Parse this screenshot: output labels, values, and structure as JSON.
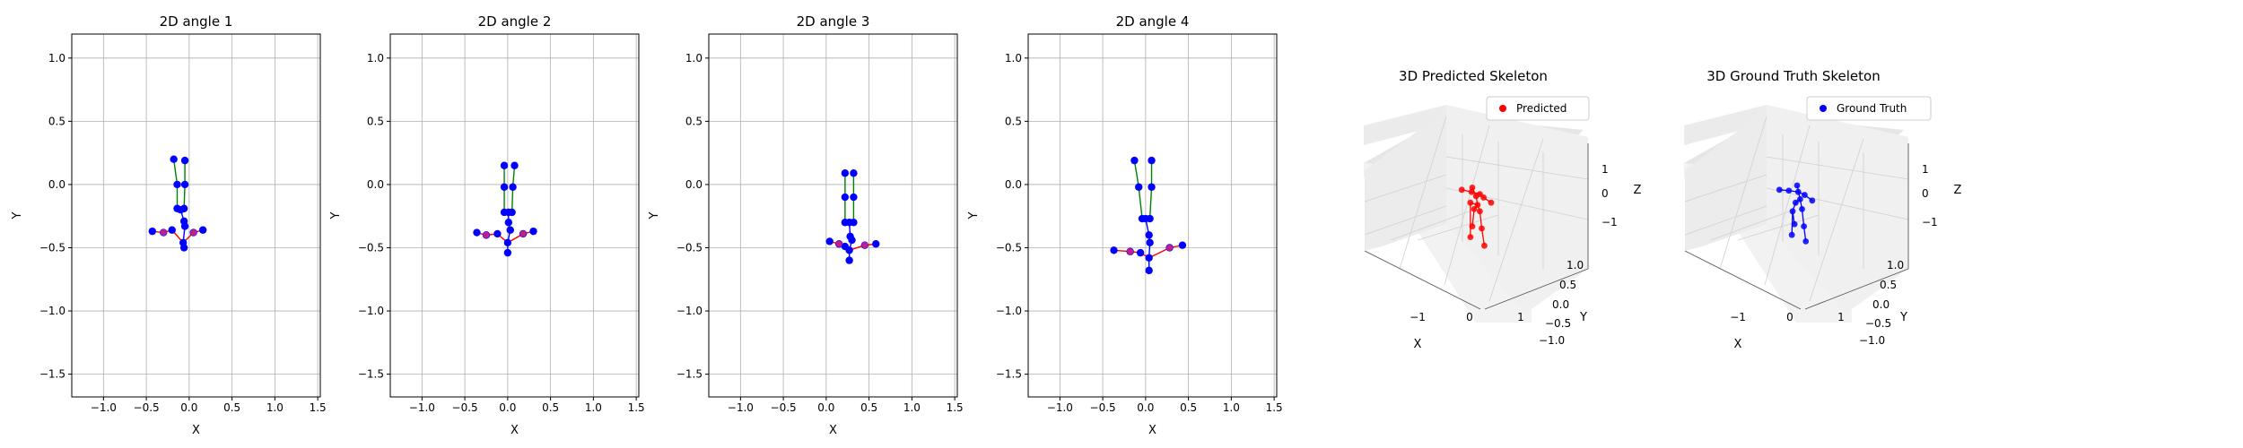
{
  "chart_data": [
    {
      "type": "scatter",
      "title": "2D angle 1",
      "xlabel": "X",
      "ylabel": "Y",
      "xlim": [
        -1.37,
        1.53
      ],
      "ylim": [
        -1.68,
        1.19
      ],
      "xticks": [
        -1.0,
        -0.5,
        0.0,
        0.5,
        1.0,
        1.5
      ],
      "yticks": [
        1.0,
        0.5,
        0.0,
        -0.5,
        -1.0,
        -1.5
      ],
      "xtick_labels": [
        "−1.0",
        "−0.5",
        "0.0",
        "0.5",
        "1.0",
        "1.5"
      ],
      "ytick_labels": [
        "1.0",
        "0.5",
        "0.0",
        "−0.5",
        "−1.0",
        "−1.5"
      ],
      "grid": true,
      "points": [
        [
          -0.07,
          -0.46
        ],
        [
          -0.3,
          -0.38
        ],
        [
          -0.43,
          -0.37
        ],
        [
          -0.2,
          -0.36
        ],
        [
          0.16,
          -0.36
        ],
        [
          0.05,
          -0.38
        ],
        [
          -0.05,
          -0.33
        ],
        [
          -0.06,
          -0.29
        ],
        [
          -0.14,
          -0.19
        ],
        [
          -0.14,
          0.0
        ],
        [
          -0.18,
          0.2
        ],
        [
          -0.06,
          -0.19
        ],
        [
          -0.05,
          0.0
        ],
        [
          -0.05,
          0.19
        ],
        [
          -0.06,
          -0.5
        ],
        [
          -0.1,
          -0.2
        ]
      ],
      "red_points": [
        [
          -0.3,
          -0.38
        ],
        [
          0.05,
          -0.38
        ]
      ],
      "arms": [
        [
          -0.43,
          -0.37
        ],
        [
          -0.3,
          -0.38
        ],
        [
          -0.2,
          -0.36
        ],
        [
          -0.07,
          -0.46
        ],
        [
          0.05,
          -0.38
        ],
        [
          0.16,
          -0.36
        ]
      ],
      "spine": [
        [
          -0.06,
          -0.5
        ],
        [
          -0.07,
          -0.46
        ],
        [
          -0.05,
          -0.33
        ],
        [
          -0.06,
          -0.29
        ],
        [
          -0.1,
          -0.2
        ]
      ],
      "legs": [
        [
          [
            -0.14,
            -0.19
          ],
          [
            -0.14,
            0.0
          ],
          [
            -0.18,
            0.2
          ]
        ],
        [
          [
            -0.06,
            -0.19
          ],
          [
            -0.05,
            0.0
          ],
          [
            -0.05,
            0.19
          ]
        ]
      ]
    },
    {
      "type": "scatter",
      "title": "2D angle 2",
      "xlabel": "X",
      "ylabel": "Y",
      "xlim": [
        -1.37,
        1.53
      ],
      "ylim": [
        -1.68,
        1.19
      ],
      "xticks": [
        -1.0,
        -0.5,
        0.0,
        0.5,
        1.0,
        1.5
      ],
      "yticks": [
        1.0,
        0.5,
        0.0,
        -0.5,
        -1.0,
        -1.5
      ],
      "xtick_labels": [
        "−1.0",
        "−0.5",
        "0.0",
        "0.5",
        "1.0",
        "1.5"
      ],
      "ytick_labels": [
        "1.0",
        "0.5",
        "0.0",
        "−0.5",
        "−1.0",
        "−1.5"
      ],
      "grid": true,
      "points": [
        [
          0.0,
          -0.46
        ],
        [
          -0.25,
          -0.4
        ],
        [
          -0.36,
          -0.38
        ],
        [
          -0.12,
          -0.39
        ],
        [
          0.3,
          -0.37
        ],
        [
          0.18,
          -0.39
        ],
        [
          0.03,
          -0.36
        ],
        [
          0.01,
          -0.3
        ],
        [
          -0.04,
          -0.22
        ],
        [
          -0.04,
          -0.02
        ],
        [
          -0.04,
          0.15
        ],
        [
          0.05,
          -0.22
        ],
        [
          0.06,
          -0.02
        ],
        [
          0.08,
          0.15
        ],
        [
          0.0,
          -0.54
        ],
        [
          0.01,
          -0.22
        ]
      ],
      "red_points": [
        [
          -0.25,
          -0.4
        ],
        [
          0.18,
          -0.39
        ]
      ],
      "arms": [
        [
          -0.36,
          -0.38
        ],
        [
          -0.25,
          -0.4
        ],
        [
          -0.12,
          -0.39
        ],
        [
          0.0,
          -0.46
        ],
        [
          0.18,
          -0.39
        ],
        [
          0.3,
          -0.37
        ]
      ],
      "spine": [
        [
          0.0,
          -0.54
        ],
        [
          0.0,
          -0.46
        ],
        [
          0.03,
          -0.36
        ],
        [
          0.01,
          -0.3
        ],
        [
          0.01,
          -0.22
        ]
      ],
      "legs": [
        [
          [
            -0.04,
            -0.22
          ],
          [
            -0.04,
            -0.02
          ],
          [
            -0.04,
            0.15
          ]
        ],
        [
          [
            0.05,
            -0.22
          ],
          [
            0.06,
            -0.02
          ],
          [
            0.08,
            0.15
          ]
        ]
      ]
    },
    {
      "type": "scatter",
      "title": "2D angle 3",
      "xlabel": "X",
      "ylabel": "Y",
      "xlim": [
        -1.37,
        1.53
      ],
      "ylim": [
        -1.68,
        1.19
      ],
      "xticks": [
        -1.0,
        -0.5,
        0.0,
        0.5,
        1.0,
        1.5
      ],
      "yticks": [
        1.0,
        0.5,
        0.0,
        -0.5,
        -1.0,
        -1.5
      ],
      "xtick_labels": [
        "−1.0",
        "−0.5",
        "0.0",
        "0.5",
        "1.0",
        "1.5"
      ],
      "ytick_labels": [
        "1.0",
        "0.5",
        "0.0",
        "−0.5",
        "−1.0",
        "−1.5"
      ],
      "grid": true,
      "points": [
        [
          0.27,
          -0.52
        ],
        [
          0.15,
          -0.47
        ],
        [
          0.04,
          -0.45
        ],
        [
          0.22,
          -0.49
        ],
        [
          0.58,
          -0.47
        ],
        [
          0.45,
          -0.48
        ],
        [
          0.3,
          -0.44
        ],
        [
          0.28,
          -0.41
        ],
        [
          0.22,
          -0.3
        ],
        [
          0.22,
          -0.1
        ],
        [
          0.22,
          0.09
        ],
        [
          0.32,
          -0.3
        ],
        [
          0.32,
          -0.1
        ],
        [
          0.32,
          0.09
        ],
        [
          0.27,
          -0.6
        ],
        [
          0.27,
          -0.3
        ]
      ],
      "red_points": [
        [
          0.15,
          -0.47
        ],
        [
          0.45,
          -0.48
        ]
      ],
      "arms": [
        [
          0.04,
          -0.45
        ],
        [
          0.15,
          -0.47
        ],
        [
          0.22,
          -0.49
        ],
        [
          0.27,
          -0.52
        ],
        [
          0.45,
          -0.48
        ],
        [
          0.58,
          -0.47
        ]
      ],
      "spine": [
        [
          0.27,
          -0.6
        ],
        [
          0.27,
          -0.52
        ],
        [
          0.3,
          -0.44
        ],
        [
          0.28,
          -0.41
        ],
        [
          0.27,
          -0.3
        ]
      ],
      "legs": [
        [
          [
            0.22,
            -0.3
          ],
          [
            0.22,
            -0.1
          ],
          [
            0.22,
            0.09
          ]
        ],
        [
          [
            0.32,
            -0.3
          ],
          [
            0.32,
            -0.1
          ],
          [
            0.32,
            0.09
          ]
        ]
      ]
    },
    {
      "type": "scatter",
      "title": "2D angle 4",
      "xlabel": "X",
      "ylabel": "Y",
      "xlim": [
        -1.37,
        1.53
      ],
      "ylim": [
        -1.68,
        1.19
      ],
      "xticks": [
        -1.0,
        -0.5,
        0.0,
        0.5,
        1.0,
        1.5
      ],
      "yticks": [
        1.0,
        0.5,
        0.0,
        -0.5,
        -1.0,
        -1.5
      ],
      "xtick_labels": [
        "−1.0",
        "−0.5",
        "0.0",
        "0.5",
        "1.0",
        "1.5"
      ],
      "ytick_labels": [
        "1.0",
        "0.5",
        "0.0",
        "−0.5",
        "−1.0",
        "−1.5"
      ],
      "grid": true,
      "points": [
        [
          0.04,
          -0.58
        ],
        [
          -0.18,
          -0.53
        ],
        [
          -0.37,
          -0.52
        ],
        [
          -0.06,
          -0.54
        ],
        [
          0.43,
          -0.48
        ],
        [
          0.28,
          -0.5
        ],
        [
          0.05,
          -0.46
        ],
        [
          0.04,
          -0.4
        ],
        [
          -0.04,
          -0.27
        ],
        [
          -0.08,
          -0.02
        ],
        [
          -0.13,
          0.19
        ],
        [
          0.05,
          -0.27
        ],
        [
          0.07,
          -0.02
        ],
        [
          0.07,
          0.19
        ],
        [
          0.04,
          -0.68
        ],
        [
          0.0,
          -0.27
        ]
      ],
      "red_points": [
        [
          -0.18,
          -0.53
        ],
        [
          0.28,
          -0.5
        ]
      ],
      "arms": [
        [
          -0.37,
          -0.52
        ],
        [
          -0.18,
          -0.53
        ],
        [
          -0.06,
          -0.54
        ],
        [
          0.04,
          -0.58
        ],
        [
          0.28,
          -0.5
        ],
        [
          0.43,
          -0.48
        ]
      ],
      "spine": [
        [
          0.04,
          -0.68
        ],
        [
          0.04,
          -0.58
        ],
        [
          0.05,
          -0.46
        ],
        [
          0.04,
          -0.4
        ],
        [
          0.0,
          -0.27
        ]
      ],
      "legs": [
        [
          [
            -0.04,
            -0.27
          ],
          [
            -0.08,
            -0.02
          ],
          [
            -0.13,
            0.19
          ]
        ],
        [
          [
            0.05,
            -0.27
          ],
          [
            0.07,
            -0.02
          ],
          [
            0.07,
            0.19
          ]
        ]
      ]
    },
    {
      "type": "scatter3d",
      "title": "3D Predicted Skeleton",
      "xlabel": "X",
      "ylabel": "Y",
      "zlabel": "Z",
      "legend": "Predicted",
      "legend_placement": "top-right",
      "marker_color": "#ff0000",
      "xlim": [
        -1.6,
        1.6
      ],
      "ylim": [
        -1.2,
        1.2
      ],
      "zlim": [
        -1.5,
        1.5
      ],
      "xticks": [
        -1,
        0,
        1
      ],
      "yticks": [
        -1.0,
        -0.5,
        0.0,
        0.5,
        1.0
      ],
      "zticks": [
        -1,
        0,
        1
      ],
      "xtick_labels": [
        "−1",
        "0",
        "1"
      ],
      "ytick_labels": [
        "−1.0",
        "−0.5",
        "0.0",
        "0.5",
        "1.0"
      ],
      "ztick_labels": [
        "−1",
        "0",
        "1"
      ],
      "grid": true,
      "points": [
        [
          -0.28,
          0.1,
          0.6
        ],
        [
          -0.02,
          0.1,
          0.55
        ],
        [
          0.2,
          0.1,
          0.5
        ],
        [
          0.3,
          0.1,
          0.42
        ],
        [
          0.5,
          0.1,
          0.3
        ],
        [
          -0.05,
          0.1,
          0.3
        ],
        [
          0.1,
          0.1,
          0.45
        ],
        [
          0.05,
          0.1,
          0.15
        ],
        [
          0.0,
          0.1,
          -0.25
        ],
        [
          0.2,
          0.1,
          0.1
        ],
        [
          0.25,
          0.1,
          -0.3
        ],
        [
          0.32,
          0.1,
          -0.7
        ],
        [
          -0.05,
          0.1,
          -0.5
        ],
        [
          0.0,
          0.1,
          0.65
        ],
        [
          0.14,
          0.1,
          0.25
        ]
      ]
    },
    {
      "type": "scatter3d",
      "title": "3D Ground Truth Skeleton",
      "xlabel": "X",
      "ylabel": "Y",
      "zlabel": "Z",
      "legend": "Ground Truth",
      "legend_placement": "top-right",
      "marker_color": "#0000ff",
      "xlim": [
        -1.6,
        1.6
      ],
      "ylim": [
        -1.2,
        1.2
      ],
      "zlim": [
        -1.5,
        1.5
      ],
      "xticks": [
        -1,
        0,
        1
      ],
      "yticks": [
        -1.0,
        -0.5,
        0.0,
        0.5,
        1.0
      ],
      "zticks": [
        -1,
        0,
        1
      ],
      "xtick_labels": [
        "−1",
        "0",
        "1"
      ],
      "ytick_labels": [
        "−1.0",
        "−0.5",
        "0.0",
        "0.5",
        "1.0"
      ],
      "ztick_labels": [
        "−1",
        "0",
        "1"
      ],
      "grid": true,
      "points": [
        [
          -0.35,
          0.1,
          0.6
        ],
        [
          -0.1,
          0.1,
          0.58
        ],
        [
          0.15,
          0.1,
          0.55
        ],
        [
          0.32,
          0.1,
          0.48
        ],
        [
          0.52,
          0.1,
          0.35
        ],
        [
          0.08,
          0.1,
          0.3
        ],
        [
          0.0,
          0.1,
          0.1
        ],
        [
          0.05,
          0.1,
          -0.2
        ],
        [
          0.25,
          0.1,
          0.15
        ],
        [
          0.3,
          0.1,
          -0.25
        ],
        [
          0.35,
          0.1,
          -0.6
        ],
        [
          -0.02,
          0.1,
          -0.45
        ],
        [
          0.12,
          0.1,
          0.7
        ],
        [
          0.2,
          0.1,
          0.38
        ]
      ]
    }
  ]
}
